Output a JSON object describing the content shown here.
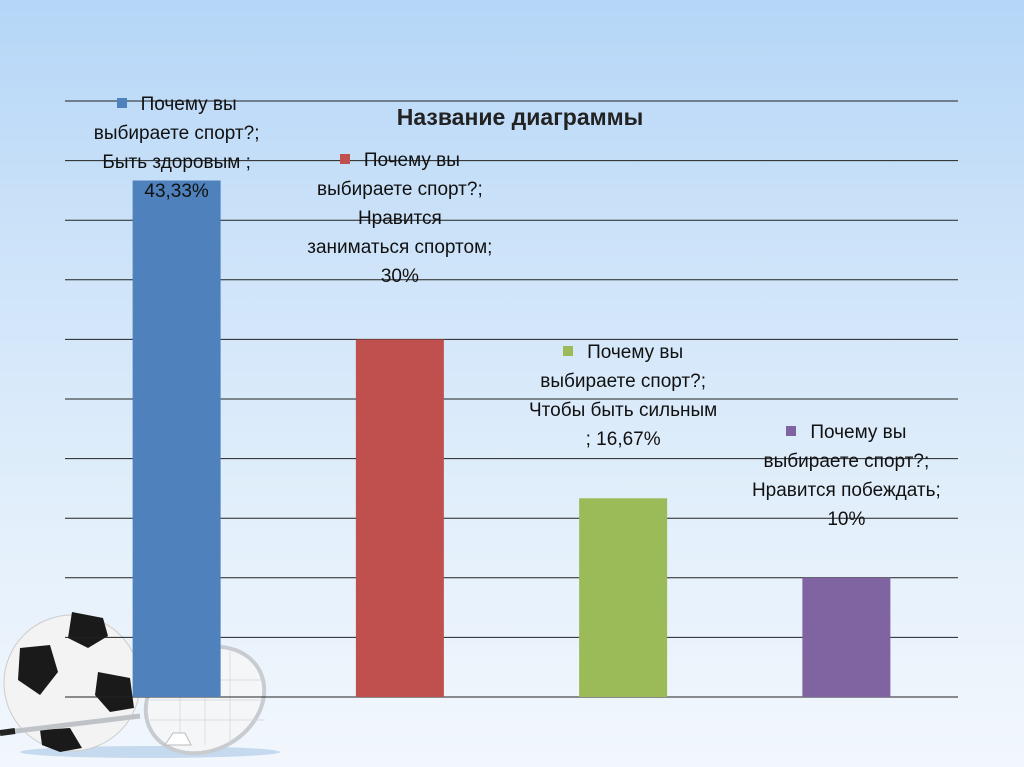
{
  "chart_data": {
    "type": "bar",
    "title": "Название диаграммы",
    "categories": [
      "Почему вы выбираете спорт?; Быть здоровым ; 43,33%",
      "Почему вы выбираете спорт?; Нравится заниматься спортом; 30%",
      "Почему вы выбираете спорт?; Чтобы быть сильным ; 16,67%",
      "Почему вы выбираете спорт?; Нравится побеждать; 10%"
    ],
    "values": [
      43.33,
      30,
      16.67,
      10
    ],
    "colors": [
      "#4f81bd",
      "#c0504d",
      "#9bbb59",
      "#8064a2"
    ],
    "ylim": [
      0,
      50
    ],
    "grid_step": 5,
    "grid": true,
    "xlabel": "",
    "ylabel": ""
  }
}
